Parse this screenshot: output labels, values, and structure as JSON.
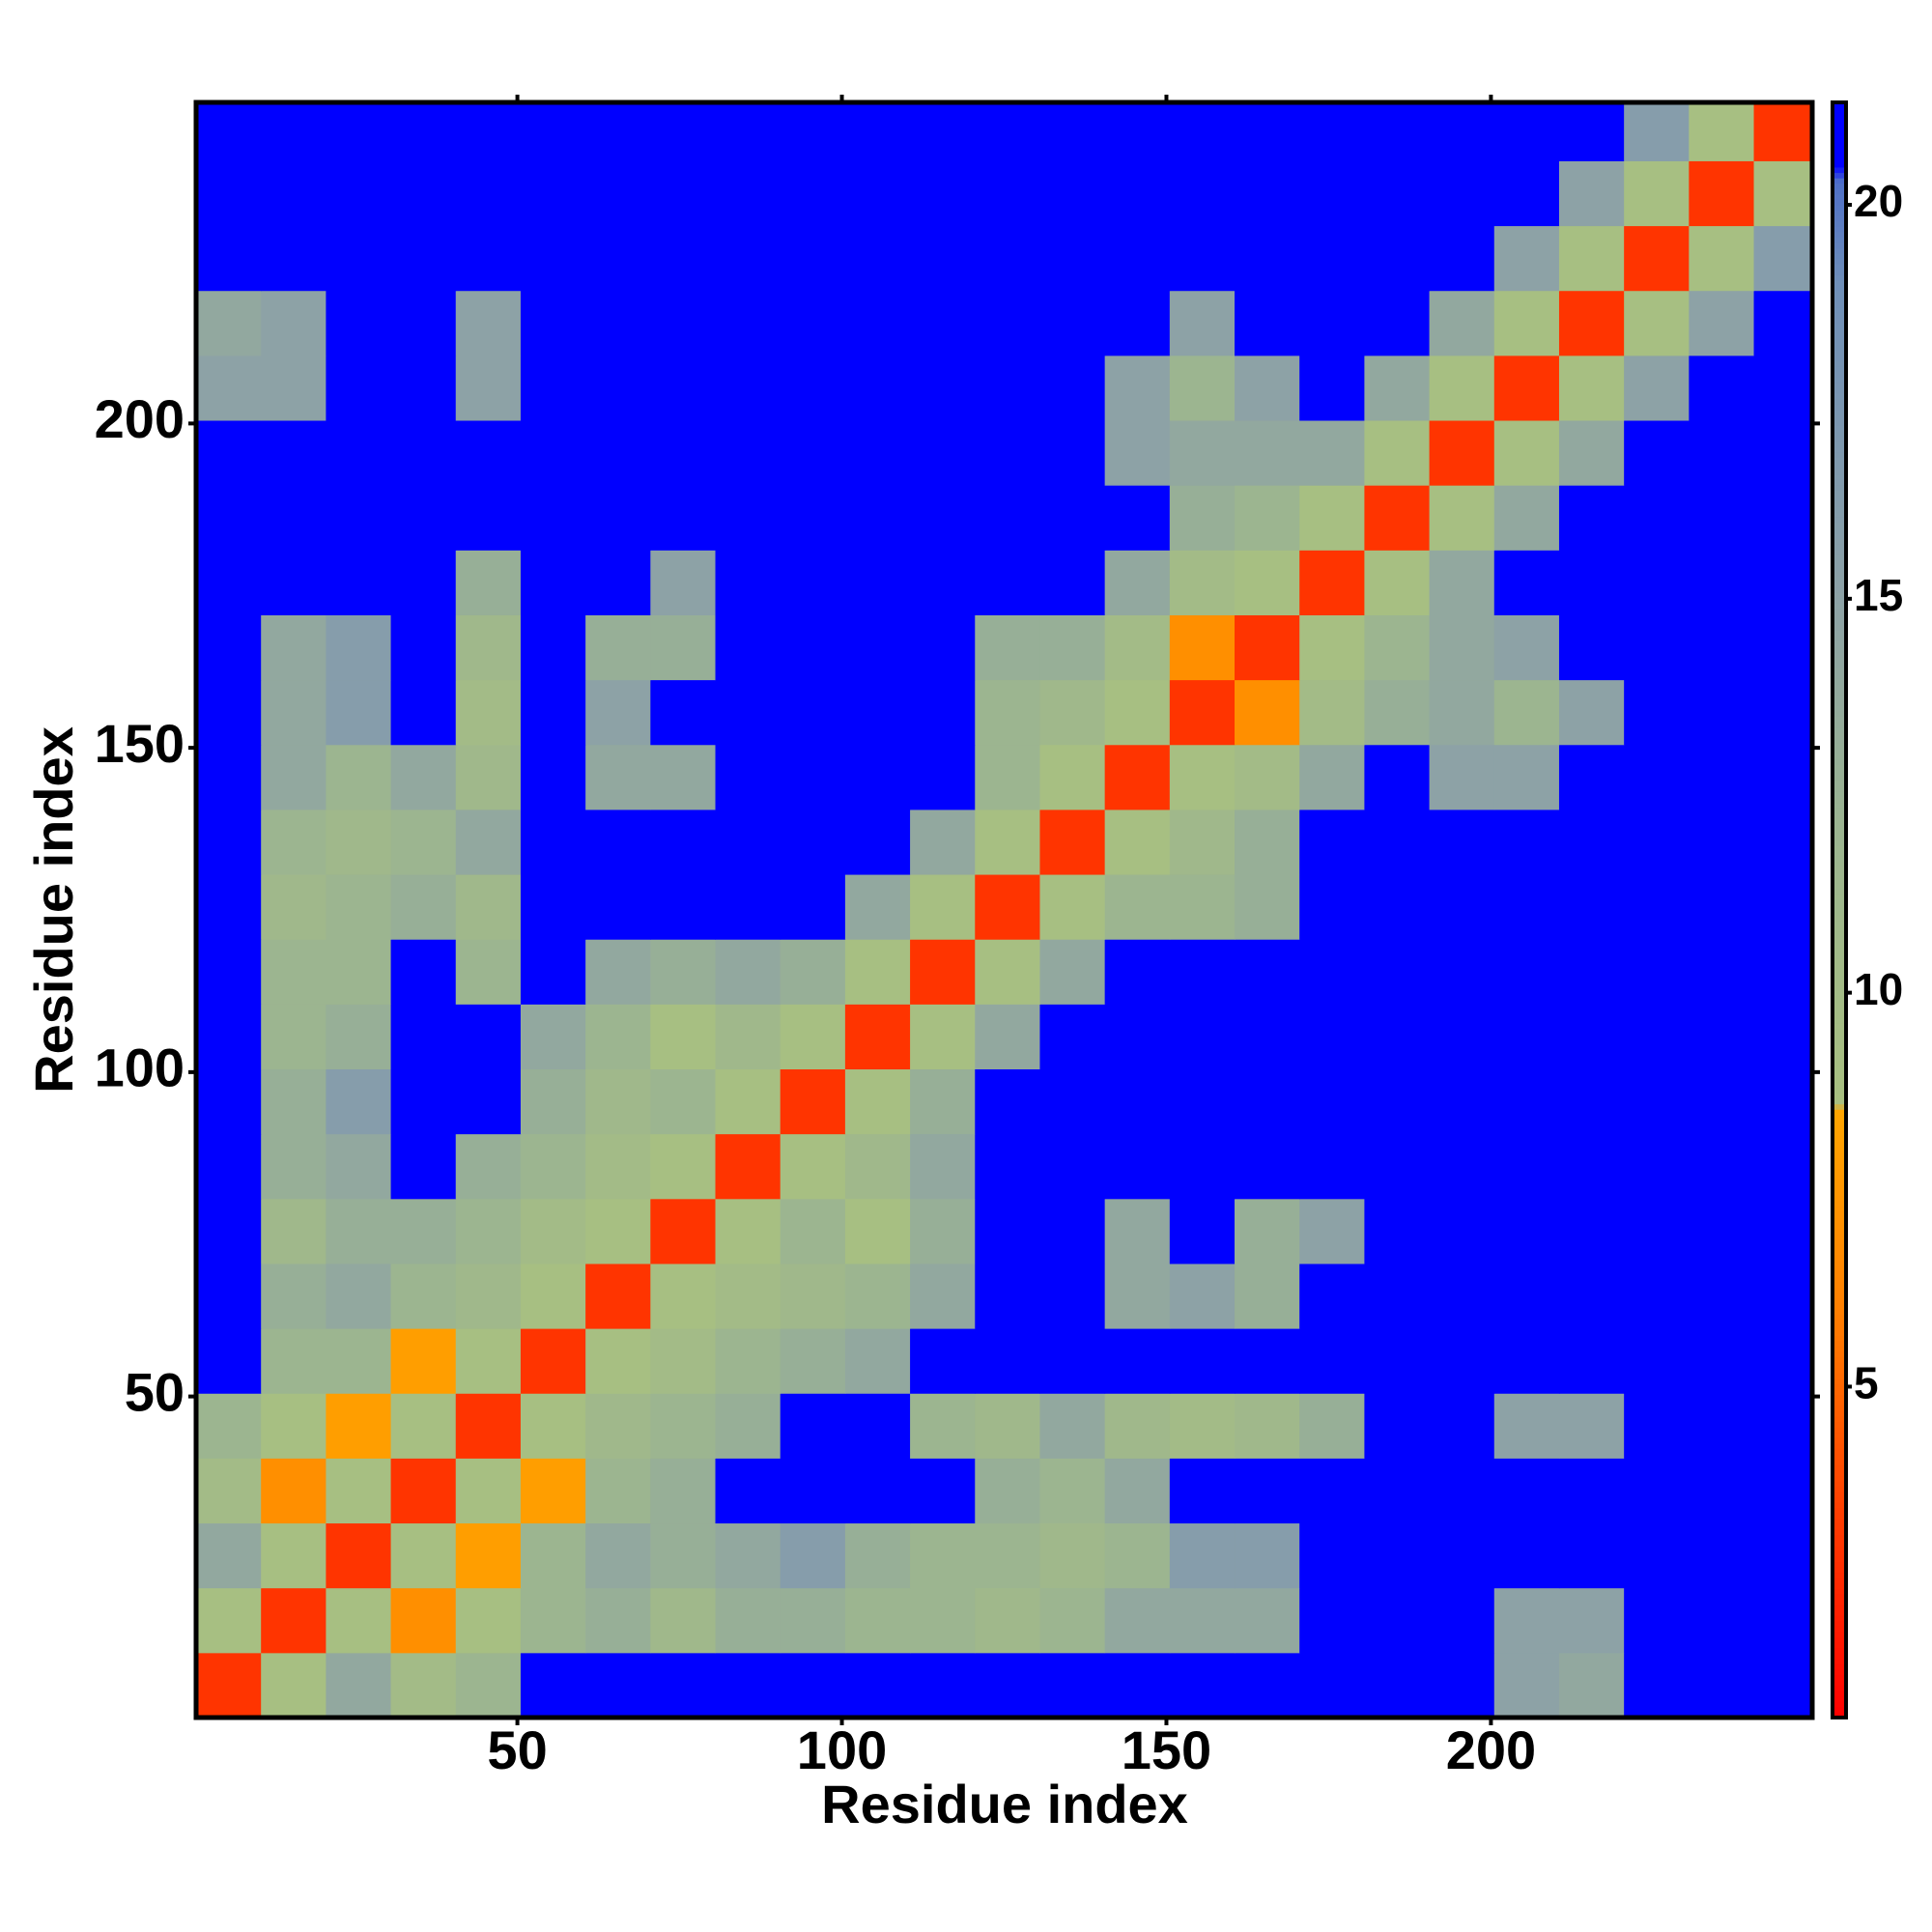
{
  "chart_data": {
    "type": "heatmap",
    "x_label": "Residue index",
    "y_label": "Residue index",
    "xlim": [
      0.5,
      249.5
    ],
    "ylim": [
      0.5,
      249.5
    ],
    "xticks": [
      50,
      100,
      150,
      200
    ],
    "yticks": [
      50,
      100,
      150,
      200
    ],
    "xbins": [
      0.5,
      10.5,
      20.5,
      30.5,
      40.5,
      50.5,
      60.5,
      70.5,
      80.5,
      90.5,
      100.5,
      110.5,
      120.5,
      130.5,
      140.5,
      150.5,
      160.5,
      170.5,
      180.5,
      190.5,
      200.5,
      210.5,
      220.5,
      230.5,
      240.5,
      249.5
    ],
    "ybins": [
      0.5,
      10.5,
      20.5,
      30.5,
      40.5,
      50.5,
      60.5,
      70.5,
      80.5,
      90.5,
      100.5,
      110.5,
      120.5,
      130.5,
      140.5,
      150.5,
      160.5,
      170.5,
      180.5,
      190.5,
      200.5,
      210.5,
      220.5,
      230.5,
      240.5,
      249.5
    ],
    "z": [
      [
        3,
        9,
        14,
        10,
        12,
        21,
        21,
        21,
        21,
        21,
        21,
        21,
        21,
        21,
        21,
        21,
        21,
        21,
        21,
        21,
        15,
        14,
        21,
        21,
        21
      ],
      [
        9,
        3,
        9,
        7,
        9,
        12,
        13,
        11,
        13,
        13,
        12,
        12,
        11,
        12,
        14,
        14,
        14,
        21,
        21,
        21,
        15,
        15,
        21,
        21,
        21
      ],
      [
        14,
        9,
        3,
        9,
        8,
        12,
        14,
        13,
        14,
        16,
        13,
        12,
        12,
        11,
        12,
        16,
        16,
        21,
        21,
        21,
        21,
        21,
        21,
        21,
        21
      ],
      [
        10,
        7,
        9,
        3,
        9,
        8,
        12,
        13,
        21,
        21,
        21,
        21,
        13,
        12,
        14,
        21,
        21,
        21,
        21,
        21,
        21,
        21,
        21,
        21,
        21
      ],
      [
        12,
        9,
        8,
        9,
        3,
        9,
        11,
        12,
        13,
        21,
        21,
        12,
        11,
        14,
        11,
        10,
        11,
        13,
        21,
        21,
        15,
        15,
        21,
        21,
        21
      ],
      [
        21,
        12,
        12,
        8,
        9,
        3,
        9,
        10,
        12,
        13,
        14,
        21,
        21,
        21,
        21,
        21,
        21,
        21,
        21,
        21,
        21,
        21,
        21,
        21,
        21
      ],
      [
        21,
        13,
        14,
        12,
        11,
        9,
        3,
        9,
        10,
        11,
        12,
        14,
        21,
        21,
        14,
        15,
        13,
        21,
        21,
        21,
        21,
        21,
        21,
        21,
        21
      ],
      [
        21,
        11,
        13,
        13,
        12,
        10,
        9,
        3,
        9,
        12,
        9,
        13,
        21,
        21,
        14,
        21,
        13,
        15,
        21,
        21,
        21,
        21,
        21,
        21,
        21
      ],
      [
        21,
        13,
        14,
        21,
        13,
        12,
        10,
        9,
        3,
        9,
        11,
        14,
        21,
        21,
        21,
        21,
        21,
        21,
        21,
        21,
        21,
        21,
        21,
        21,
        21
      ],
      [
        21,
        13,
        16,
        21,
        21,
        13,
        11,
        12,
        9,
        3,
        9,
        13,
        21,
        21,
        21,
        21,
        21,
        21,
        21,
        21,
        21,
        21,
        21,
        21,
        21
      ],
      [
        21,
        12,
        13,
        21,
        21,
        14,
        12,
        9,
        11,
        9,
        3,
        9,
        14,
        21,
        21,
        21,
        21,
        21,
        21,
        21,
        21,
        21,
        21,
        21,
        21
      ],
      [
        21,
        12,
        12,
        21,
        12,
        21,
        14,
        13,
        14,
        13,
        9,
        3,
        9,
        14,
        21,
        21,
        21,
        21,
        21,
        21,
        21,
        21,
        21,
        21,
        21
      ],
      [
        21,
        11,
        12,
        13,
        11,
        21,
        21,
        21,
        21,
        21,
        14,
        9,
        3,
        9,
        12,
        12,
        13,
        21,
        21,
        21,
        21,
        21,
        21,
        21,
        21
      ],
      [
        21,
        12,
        11,
        12,
        14,
        21,
        21,
        21,
        21,
        21,
        21,
        14,
        9,
        3,
        9,
        11,
        13,
        21,
        21,
        21,
        21,
        21,
        21,
        21,
        21
      ],
      [
        21,
        14,
        12,
        14,
        11,
        21,
        14,
        14,
        21,
        21,
        21,
        21,
        12,
        9,
        3,
        9,
        10,
        14,
        21,
        15,
        15,
        21,
        21,
        21,
        21
      ],
      [
        21,
        14,
        16,
        21,
        10,
        21,
        15,
        21,
        21,
        21,
        21,
        21,
        12,
        11,
        9,
        3,
        7,
        10,
        13,
        14,
        12,
        15,
        21,
        21,
        21
      ],
      [
        21,
        14,
        16,
        21,
        11,
        21,
        13,
        13,
        21,
        21,
        21,
        21,
        13,
        13,
        10,
        7,
        3,
        9,
        12,
        14,
        15,
        21,
        21,
        21,
        21
      ],
      [
        21,
        21,
        21,
        21,
        13,
        21,
        21,
        15,
        21,
        21,
        21,
        21,
        21,
        21,
        14,
        10,
        9,
        3,
        9,
        14,
        21,
        21,
        21,
        21,
        21
      ],
      [
        21,
        21,
        21,
        21,
        21,
        21,
        21,
        21,
        21,
        21,
        21,
        21,
        21,
        21,
        21,
        13,
        12,
        9,
        3,
        9,
        14,
        21,
        21,
        21,
        21
      ],
      [
        21,
        21,
        21,
        21,
        21,
        21,
        21,
        21,
        21,
        21,
        21,
        21,
        21,
        21,
        15,
        14,
        14,
        14,
        9,
        3,
        9,
        14,
        21,
        21,
        21
      ],
      [
        15,
        15,
        21,
        21,
        15,
        21,
        21,
        21,
        21,
        21,
        21,
        21,
        21,
        21,
        15,
        12,
        15,
        21,
        14,
        9,
        3,
        9,
        15,
        21,
        21
      ],
      [
        14,
        15,
        21,
        21,
        15,
        21,
        21,
        21,
        21,
        21,
        21,
        21,
        21,
        21,
        21,
        15,
        21,
        21,
        21,
        14,
        9,
        3,
        9,
        15,
        21
      ],
      [
        21,
        21,
        21,
        21,
        21,
        21,
        21,
        21,
        21,
        21,
        21,
        21,
        21,
        21,
        21,
        21,
        21,
        21,
        21,
        21,
        15,
        9,
        3,
        9,
        16
      ],
      [
        21,
        21,
        21,
        21,
        21,
        21,
        21,
        21,
        21,
        21,
        21,
        21,
        21,
        21,
        21,
        21,
        21,
        21,
        21,
        21,
        21,
        15,
        9,
        3,
        9
      ],
      [
        21,
        21,
        21,
        21,
        21,
        21,
        21,
        21,
        21,
        21,
        21,
        21,
        21,
        21,
        21,
        21,
        21,
        21,
        21,
        21,
        21,
        21,
        16,
        9,
        3
      ]
    ],
    "zlim": [
      0.8,
      21.3
    ],
    "cbar_ticks": [
      5,
      10,
      15,
      20
    ],
    "colormap": [
      {
        "value": 0.8,
        "color": "#ff0000"
      },
      {
        "value": 3.5,
        "color": "#ff4000"
      },
      {
        "value": 6,
        "color": "#ff8000"
      },
      {
        "value": 8.5,
        "color": "#ffa500"
      },
      {
        "value": 8.6,
        "color": "#a8c080"
      },
      {
        "value": 12,
        "color": "#9cb590"
      },
      {
        "value": 15,
        "color": "#8da2a6"
      },
      {
        "value": 19,
        "color": "#6f8fb8"
      },
      {
        "value": 20.3,
        "color": "#4f70c8"
      },
      {
        "value": 20.5,
        "color": "#0000ff"
      },
      {
        "value": 21.3,
        "color": "#0000ff"
      }
    ]
  }
}
